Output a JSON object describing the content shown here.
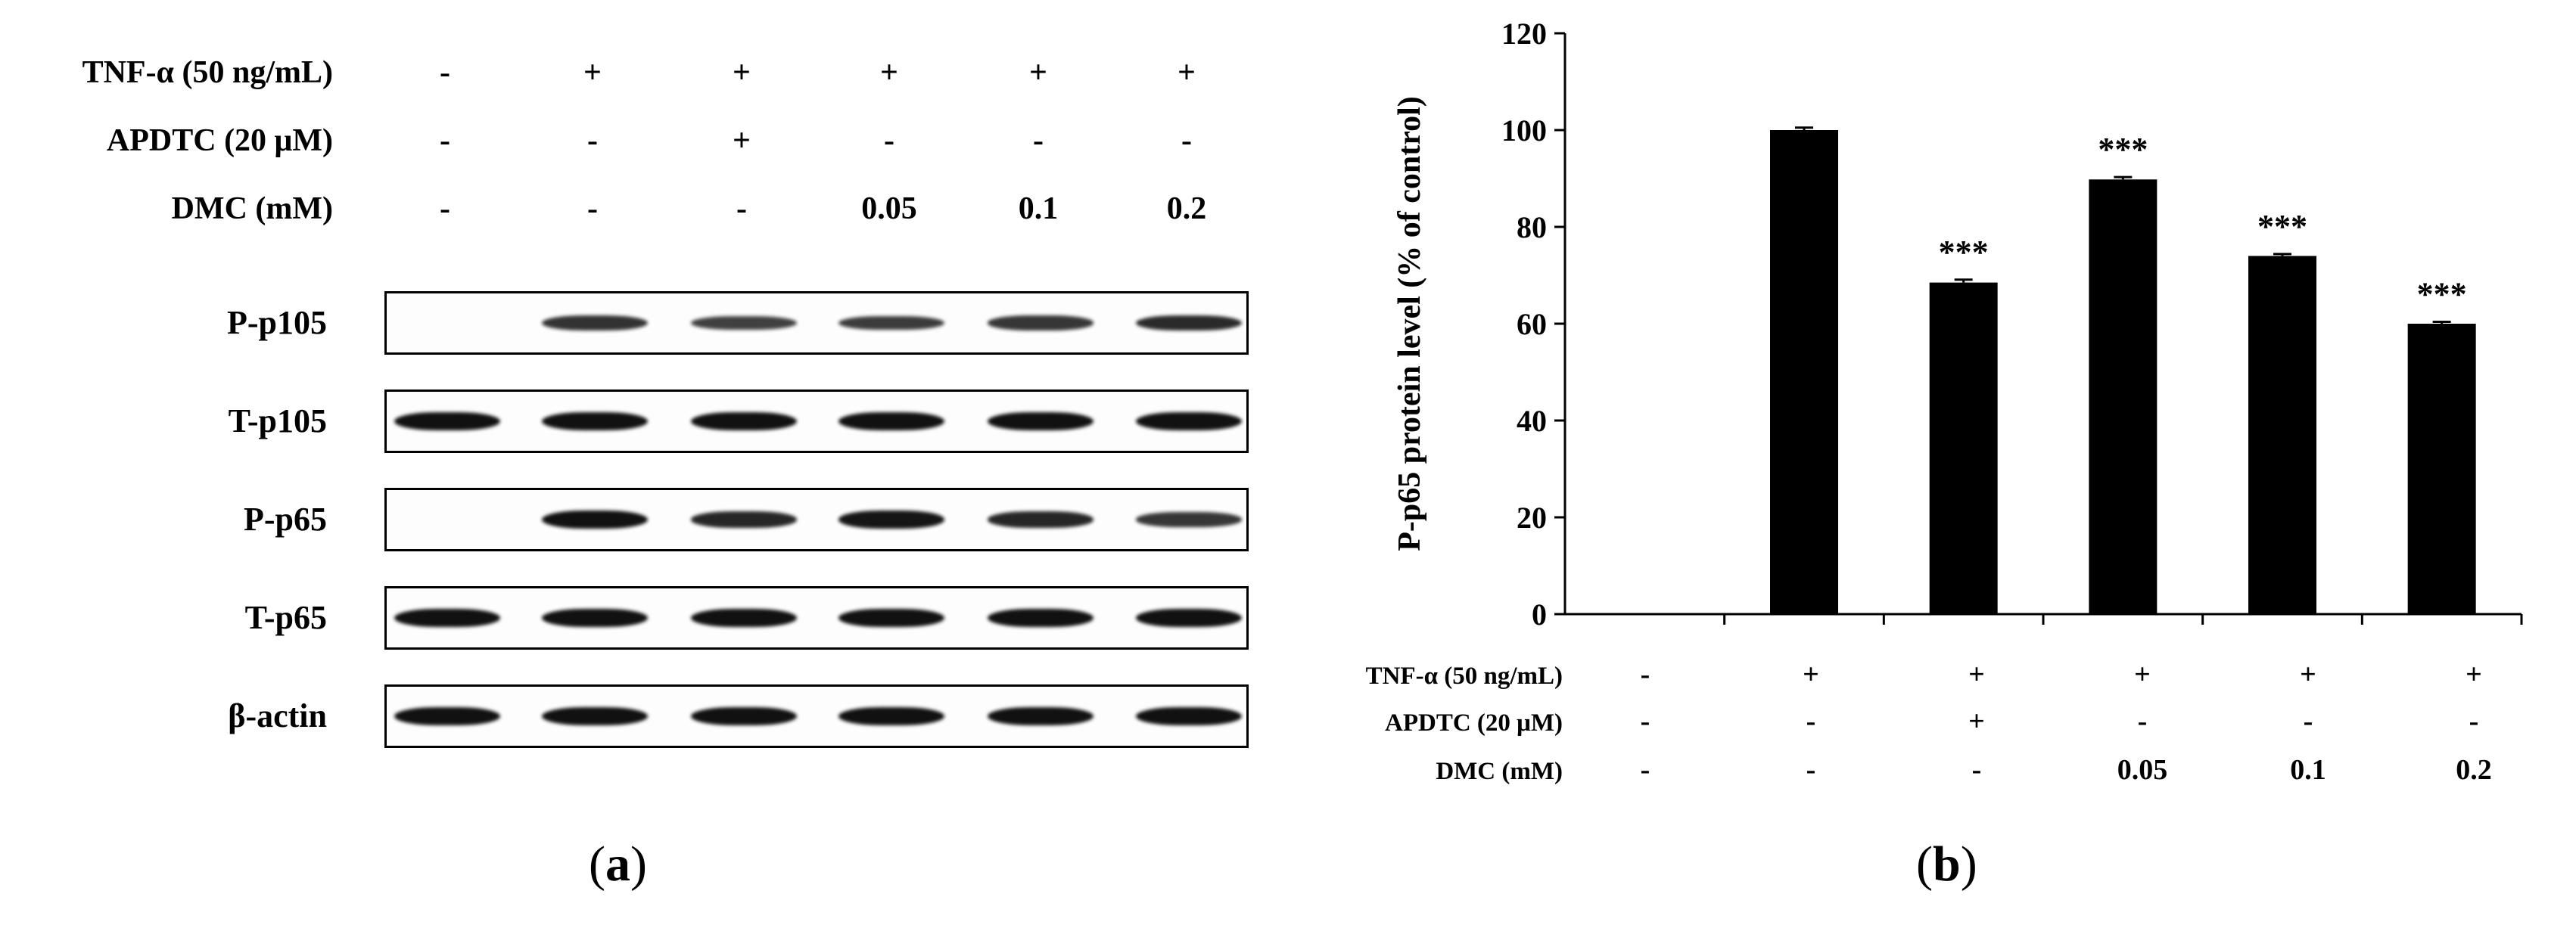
{
  "panel_a": {
    "letter": "a",
    "conditions": [
      {
        "label": "TNF-α (50 ng/mL)",
        "values": [
          "-",
          "+",
          "+",
          "+",
          "+",
          "+"
        ]
      },
      {
        "label": "APDTC (20 μM)",
        "values": [
          "-",
          "-",
          "+",
          "-",
          "-",
          "-"
        ]
      },
      {
        "label": "DMC (mM)",
        "values": [
          "-",
          "-",
          "-",
          "0.05",
          "0.1",
          "0.2"
        ]
      }
    ],
    "blots": [
      {
        "label": "P-p105",
        "bands": [
          0,
          0.7,
          0.55,
          0.6,
          0.65,
          0.75
        ]
      },
      {
        "label": "T-p105",
        "bands": [
          1,
          1,
          1,
          1,
          1,
          1
        ]
      },
      {
        "label": "P-p65",
        "bands": [
          0,
          1,
          0.8,
          0.95,
          0.8,
          0.65
        ]
      },
      {
        "label": "T-p65",
        "bands": [
          1,
          1,
          1,
          1,
          1,
          1
        ]
      },
      {
        "label": "β-actin",
        "bands": [
          1,
          1,
          1,
          1,
          1,
          1
        ]
      }
    ]
  },
  "panel_b": {
    "letter": "b",
    "conditions": [
      {
        "label": "TNF-α (50 ng/mL)",
        "values": [
          "-",
          "+",
          "+",
          "+",
          "+",
          "+"
        ]
      },
      {
        "label": "APDTC (20 μM)",
        "values": [
          "-",
          "-",
          "+",
          "-",
          "-",
          "-"
        ]
      },
      {
        "label": "DMC (mM)",
        "values": [
          "-",
          "-",
          "-",
          "0.05",
          "0.1",
          "0.2"
        ]
      }
    ]
  },
  "chart_data": {
    "type": "bar",
    "ylabel": "P-p65 protein level (% of control)",
    "ylim": [
      0,
      120
    ],
    "yticks": [
      0,
      20,
      40,
      60,
      80,
      100,
      120
    ],
    "grid": false,
    "values": [
      0,
      100,
      68.5,
      89.8,
      74,
      60
    ],
    "errors": [
      0,
      0.5,
      0.6,
      0.5,
      0.4,
      0.4
    ],
    "significance": [
      "",
      "",
      "***",
      "***",
      "***",
      "***"
    ],
    "bar_color": "#000000"
  }
}
